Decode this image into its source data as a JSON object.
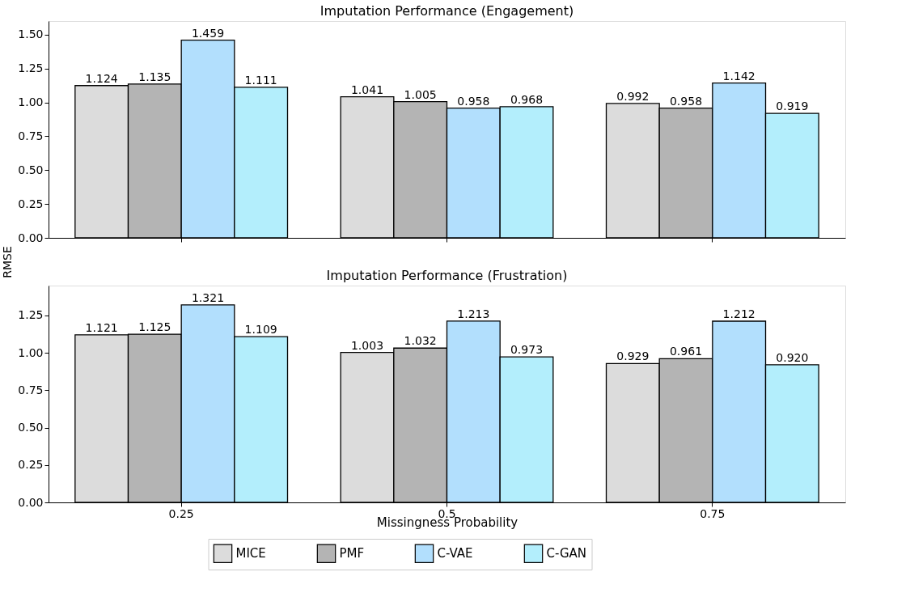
{
  "chart_data": [
    {
      "type": "bar",
      "title": "Imputation Performance (Engagement)",
      "ylabel": "RMSE",
      "categories": [
        "0.25",
        "0.5",
        "0.75"
      ],
      "series": [
        {
          "name": "MICE",
          "color": "#dcdcdc",
          "values": [
            1.124,
            1.041,
            0.992
          ]
        },
        {
          "name": "PMF",
          "color": "#b4b4b4",
          "values": [
            1.135,
            1.005,
            0.958
          ]
        },
        {
          "name": "C-VAE",
          "color": "#b2dffd",
          "values": [
            1.459,
            0.958,
            1.142
          ]
        },
        {
          "name": "C-GAN",
          "color": "#b3eefc",
          "values": [
            1.111,
            0.968,
            0.919
          ]
        }
      ],
      "ylim": [
        0,
        1.6
      ],
      "yticks": [
        {
          "value": 0,
          "label": "0.00"
        },
        {
          "value": 0.25,
          "label": "0.25"
        },
        {
          "value": 0.5,
          "label": "0.50"
        },
        {
          "value": 0.75,
          "label": "0.75"
        },
        {
          "value": 1,
          "label": "1.00"
        },
        {
          "value": 1.25,
          "label": "1.25"
        },
        {
          "value": 1.5,
          "label": "1.50"
        }
      ],
      "value_labels": [
        [
          "1.124",
          "1.041",
          "0.992"
        ],
        [
          "1.135",
          "1.005",
          "0.958"
        ],
        [
          "1.459",
          "0.958",
          "1.142"
        ],
        [
          "1.111",
          "0.968",
          "0.919"
        ]
      ],
      "tick_labels": "y",
      "grid": false,
      "legend": "bottom"
    },
    {
      "type": "bar",
      "title": "Imputation Performance (Frustration)",
      "xlabel": "Missingness Probability",
      "categories": [
        "0.25",
        "0.5",
        "0.75"
      ],
      "series": [
        {
          "name": "MICE",
          "color": "#dcdcdc",
          "values": [
            1.121,
            1.003,
            0.929
          ]
        },
        {
          "name": "PMF",
          "color": "#b4b4b4",
          "values": [
            1.125,
            1.032,
            0.961
          ]
        },
        {
          "name": "C-VAE",
          "color": "#b2dffd",
          "values": [
            1.321,
            1.213,
            1.212
          ]
        },
        {
          "name": "C-GAN",
          "color": "#b3eefc",
          "values": [
            1.109,
            0.973,
            0.92
          ]
        }
      ],
      "ylim": [
        0,
        1.45
      ],
      "yticks": [
        {
          "value": 0,
          "label": "0.00"
        },
        {
          "value": 0.25,
          "label": "0.25"
        },
        {
          "value": 0.5,
          "label": "0.50"
        },
        {
          "value": 0.75,
          "label": "0.75"
        },
        {
          "value": 1,
          "label": "1.00"
        },
        {
          "value": 1.25,
          "label": "1.25"
        }
      ],
      "value_labels": [
        [
          "1.121",
          "1.003",
          "0.929"
        ],
        [
          "1.125",
          "1.032",
          "0.961"
        ],
        [
          "1.321",
          "1.213",
          "1.212"
        ],
        [
          "1.109",
          "0.973",
          "0.920"
        ]
      ],
      "grid": false,
      "legend": "bottom"
    }
  ]
}
